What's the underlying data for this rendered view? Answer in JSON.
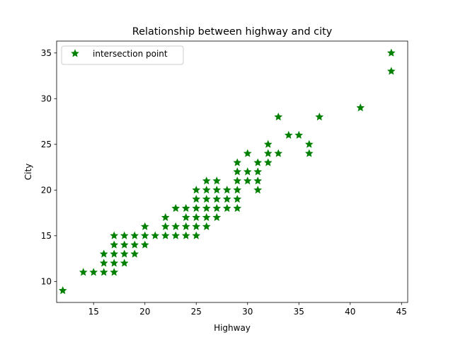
{
  "chart_data": {
    "type": "scatter",
    "title": "Relationship between highway and city",
    "xlabel": "Highway",
    "ylabel": "City",
    "xlim": [
      11.4,
      45.6
    ],
    "ylim": [
      7.7,
      36.3
    ],
    "xticks": [
      15,
      20,
      25,
      30,
      35,
      40,
      45
    ],
    "yticks": [
      10,
      15,
      20,
      25,
      30,
      35
    ],
    "grid": false,
    "legend_position": "upper-left",
    "series": [
      {
        "name": "intersection point",
        "color": "#008000",
        "marker": "star",
        "points": [
          [
            12,
            9
          ],
          [
            14,
            11
          ],
          [
            15,
            11
          ],
          [
            16,
            11
          ],
          [
            17,
            11
          ],
          [
            16,
            12
          ],
          [
            17,
            12
          ],
          [
            18,
            12
          ],
          [
            16,
            13
          ],
          [
            17,
            13
          ],
          [
            18,
            13
          ],
          [
            19,
            13
          ],
          [
            17,
            14
          ],
          [
            18,
            14
          ],
          [
            19,
            14
          ],
          [
            20,
            14
          ],
          [
            17,
            15
          ],
          [
            18,
            15
          ],
          [
            19,
            15
          ],
          [
            20,
            15
          ],
          [
            21,
            15
          ],
          [
            22,
            15
          ],
          [
            23,
            15
          ],
          [
            24,
            15
          ],
          [
            25,
            15
          ],
          [
            20,
            16
          ],
          [
            22,
            16
          ],
          [
            23,
            16
          ],
          [
            24,
            16
          ],
          [
            25,
            16
          ],
          [
            26,
            16
          ],
          [
            22,
            17
          ],
          [
            24,
            17
          ],
          [
            25,
            17
          ],
          [
            26,
            17
          ],
          [
            27,
            17
          ],
          [
            23,
            18
          ],
          [
            24,
            18
          ],
          [
            25,
            18
          ],
          [
            26,
            18
          ],
          [
            27,
            18
          ],
          [
            28,
            18
          ],
          [
            29,
            18
          ],
          [
            25,
            19
          ],
          [
            26,
            19
          ],
          [
            27,
            19
          ],
          [
            28,
            19
          ],
          [
            29,
            19
          ],
          [
            25,
            20
          ],
          [
            26,
            20
          ],
          [
            27,
            20
          ],
          [
            28,
            20
          ],
          [
            29,
            20
          ],
          [
            31,
            20
          ],
          [
            26,
            21
          ],
          [
            27,
            21
          ],
          [
            29,
            21
          ],
          [
            30,
            21
          ],
          [
            31,
            21
          ],
          [
            29,
            22
          ],
          [
            30,
            22
          ],
          [
            31,
            22
          ],
          [
            29,
            23
          ],
          [
            31,
            23
          ],
          [
            32,
            23
          ],
          [
            30,
            24
          ],
          [
            32,
            24
          ],
          [
            33,
            24
          ],
          [
            36,
            24
          ],
          [
            32,
            25
          ],
          [
            36,
            25
          ],
          [
            34,
            26
          ],
          [
            35,
            26
          ],
          [
            33,
            28
          ],
          [
            37,
            28
          ],
          [
            41,
            29
          ],
          [
            44,
            33
          ],
          [
            44,
            35
          ]
        ]
      }
    ]
  }
}
